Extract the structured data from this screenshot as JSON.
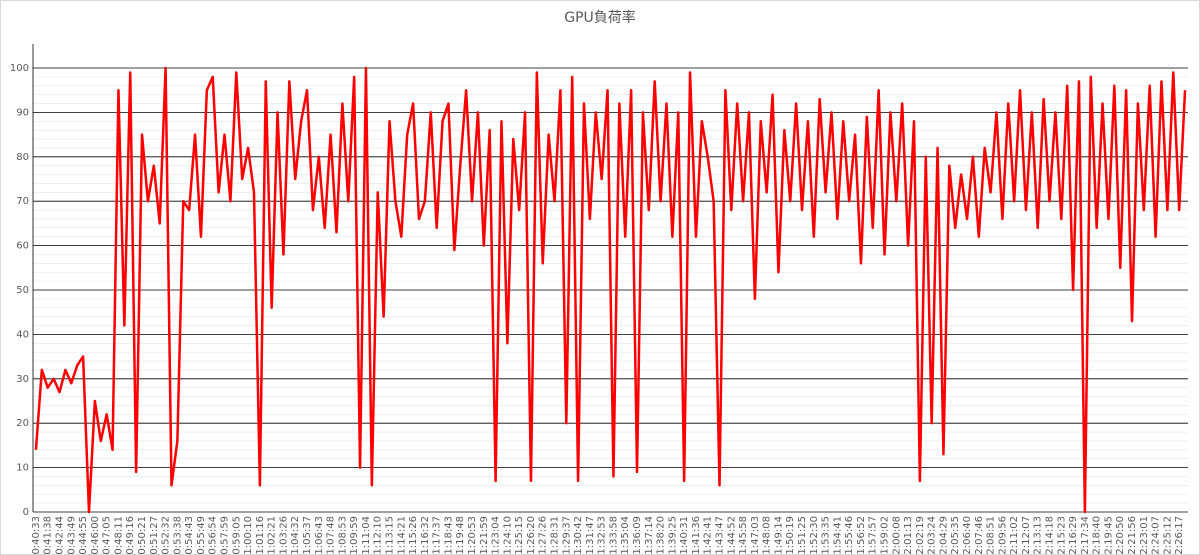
{
  "chart_data": {
    "type": "line",
    "title": "GPU負荷率",
    "categories": [
      "0:40:33",
      null,
      "0:41:38",
      null,
      "0:42:44",
      null,
      "0:43:49",
      null,
      "0:44:55",
      null,
      "0:46:00",
      null,
      "0:47:05",
      null,
      "0:48:11",
      null,
      "0:49:16",
      null,
      "0:50:21",
      null,
      "0:51:27",
      null,
      "0:52:32",
      null,
      "0:53:38",
      null,
      "0:54:43",
      null,
      "0:55:49",
      null,
      "0:56:54",
      null,
      "0:57:59",
      null,
      "0:59:05",
      null,
      "1:00:10",
      null,
      "1:01:16",
      null,
      "1:02:21",
      null,
      "1:03:26",
      null,
      "1:04:32",
      null,
      "1:05:37",
      null,
      "1:06:43",
      null,
      "1:07:48",
      null,
      "1:08:53",
      null,
      "1:09:59",
      null,
      "1:11:04",
      null,
      "1:12:10",
      null,
      "1:13:15",
      null,
      "1:14:21",
      null,
      "1:15:26",
      null,
      "1:16:32",
      null,
      "1:17:37",
      null,
      "1:18:43",
      null,
      "1:19:48",
      null,
      "1:20:53",
      null,
      "1:21:59",
      null,
      "1:23:04",
      null,
      "1:24:10",
      null,
      "1:25:15",
      null,
      "1:26:20",
      null,
      "1:27:26",
      null,
      "1:28:31",
      null,
      "1:29:37",
      null,
      "1:30:42",
      null,
      "1:31:47",
      null,
      "1:32:53",
      null,
      "1:33:58",
      null,
      "1:35:04",
      null,
      "1:36:09",
      null,
      "1:37:14",
      null,
      "1:38:20",
      null,
      "1:39:25",
      null,
      "1:40:31",
      null,
      "1:41:36",
      null,
      "1:42:41",
      null,
      "1:43:47",
      null,
      "1:44:52",
      null,
      "1:45:58",
      null,
      "1:47:03",
      null,
      "1:48:08",
      null,
      "1:49:14",
      null,
      "1:50:19",
      null,
      "1:51:25",
      null,
      "1:52:30",
      null,
      "1:53:35",
      null,
      "1:54:41",
      null,
      "1:55:46",
      null,
      "1:56:52",
      null,
      "1:57:57",
      null,
      "1:59:02",
      null,
      "2:00:08",
      null,
      "2:01:13",
      null,
      "2:02:19",
      null,
      "2:03:24",
      null,
      "2:04:29",
      null,
      "2:05:35",
      null,
      "2:06:40",
      null,
      "2:07:46",
      null,
      "2:08:51",
      null,
      "2:09:56",
      null,
      "2:11:02",
      null,
      "2:12:07",
      null,
      "2:13:13",
      null,
      "2:14:18",
      null,
      "2:15:23",
      null,
      "2:16:29",
      null,
      "2:17:34",
      null,
      "2:18:40",
      null,
      "2:19:45",
      null,
      "2:20:50",
      null,
      "2:21:56",
      null,
      "2:23:01",
      null,
      "2:24:07",
      null,
      "2:25:12",
      null,
      "2:26:17",
      null
    ],
    "values": [
      14,
      32,
      28,
      30,
      27,
      32,
      29,
      33,
      35,
      0,
      25,
      16,
      22,
      14,
      95,
      42,
      99,
      9,
      85,
      70,
      78,
      65,
      100,
      6,
      16,
      70,
      68,
      85,
      62,
      95,
      98,
      72,
      85,
      70,
      99,
      75,
      82,
      72,
      6,
      97,
      46,
      90,
      58,
      97,
      75,
      88,
      95,
      68,
      80,
      64,
      85,
      63,
      92,
      70,
      98,
      10,
      100,
      6,
      72,
      44,
      88,
      70,
      62,
      85,
      92,
      66,
      70,
      90,
      64,
      88,
      92,
      59,
      78,
      95,
      70,
      90,
      60,
      86,
      7,
      88,
      38,
      84,
      68,
      90,
      7,
      99,
      56,
      85,
      70,
      95,
      20,
      98,
      7,
      92,
      66,
      90,
      75,
      95,
      8,
      92,
      62,
      95,
      9,
      90,
      68,
      97,
      70,
      92,
      62,
      90,
      7,
      99,
      62,
      88,
      80,
      70,
      6,
      95,
      68,
      92,
      70,
      90,
      48,
      88,
      72,
      94,
      54,
      86,
      70,
      92,
      68,
      88,
      62,
      93,
      72,
      90,
      66,
      88,
      70,
      85,
      56,
      89,
      64,
      95,
      58,
      90,
      70,
      92,
      60,
      88,
      7,
      80,
      20,
      82,
      13,
      78,
      64,
      76,
      66,
      80,
      62,
      82,
      72,
      90,
      66,
      92,
      70,
      95,
      68,
      90,
      64,
      93,
      70,
      90,
      66,
      96,
      50,
      97,
      0,
      98,
      64,
      92,
      66,
      96,
      55,
      95,
      43,
      92,
      68,
      96,
      62,
      97,
      68,
      99,
      68,
      95
    ],
    "color": "#ff0000",
    "ylim": [
      0,
      100
    ],
    "yticks": [
      0,
      10,
      20,
      30,
      40,
      50,
      60,
      70,
      80,
      90,
      100
    ],
    "grid": true
  }
}
